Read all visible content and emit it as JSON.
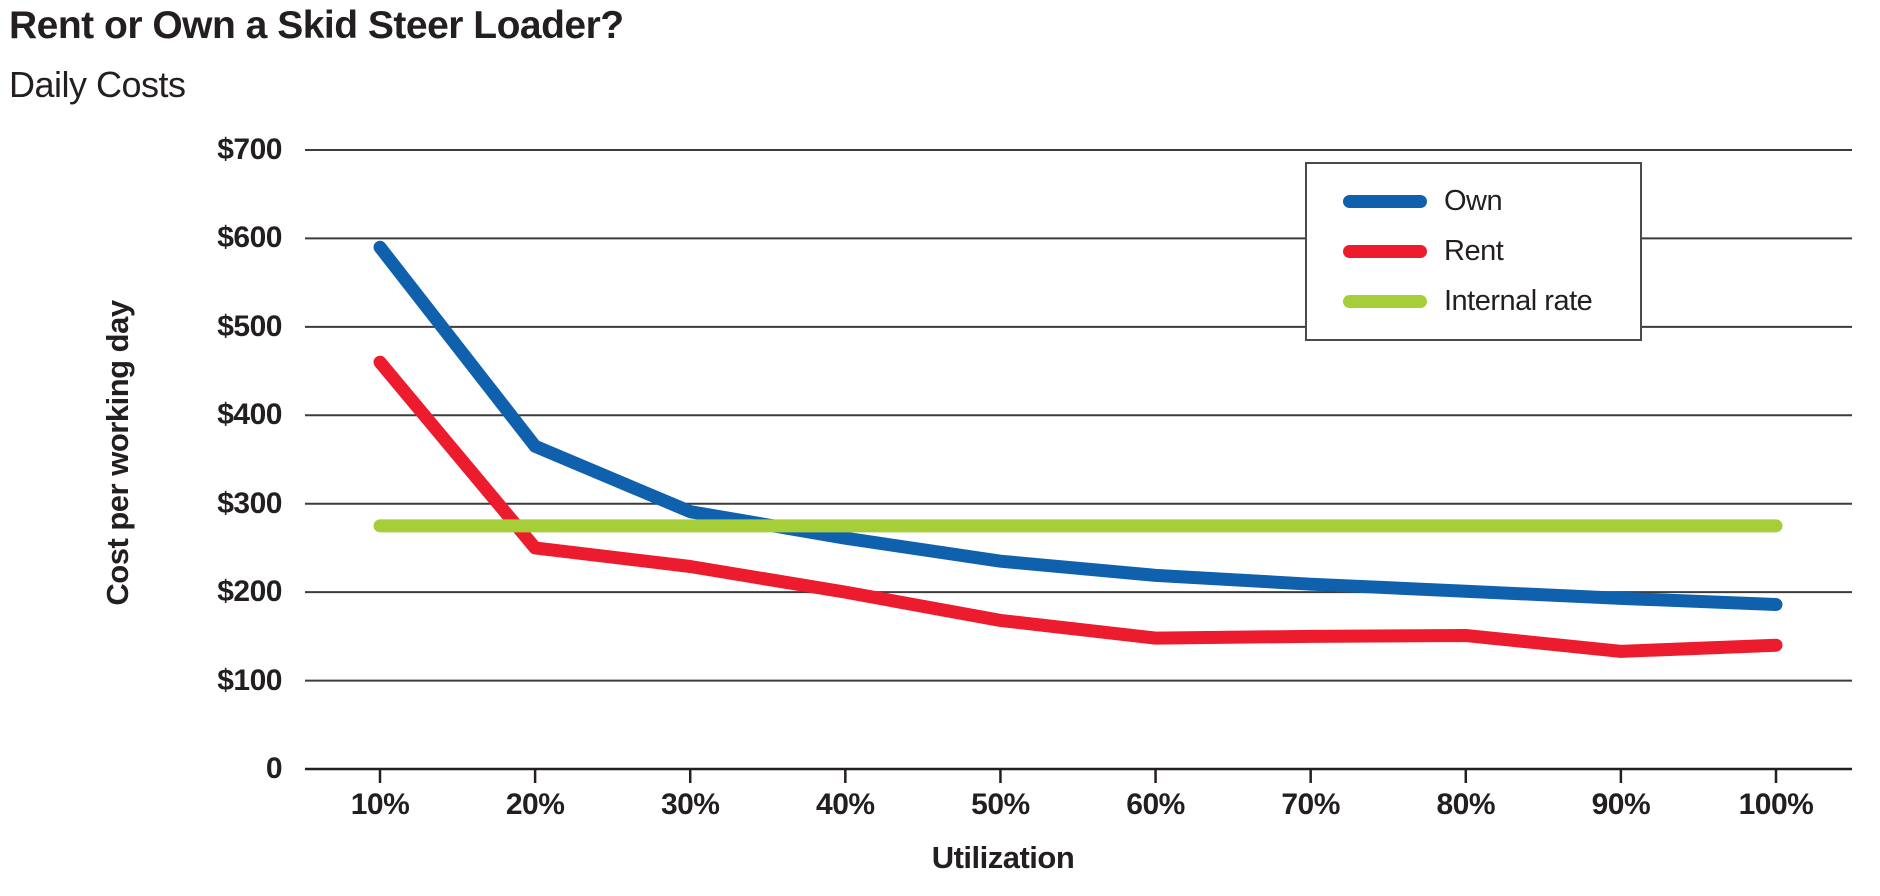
{
  "title": "Rent or Own a Skid Steer Loader?",
  "subtitle": "Daily Costs",
  "chart_data": {
    "type": "line",
    "title": "Rent or Own a Skid Steer Loader?",
    "subtitle": "Daily Costs",
    "xlabel": "Utilization",
    "ylabel": "Cost per working day",
    "categories": [
      "10%",
      "20%",
      "30%",
      "40%",
      "50%",
      "60%",
      "70%",
      "80%",
      "90%",
      "100%"
    ],
    "series": [
      {
        "name": "Own",
        "color": "#1061AD",
        "values": [
          590,
          365,
          291,
          261,
          235,
          219,
          209,
          201,
          193,
          186
        ]
      },
      {
        "name": "Rent",
        "color": "#EC1B2E",
        "values": [
          460,
          250,
          229,
          200,
          168,
          148,
          150,
          151,
          133,
          140
        ]
      },
      {
        "name": "Internal rate",
        "color": "#A6CE39",
        "values": [
          275,
          275,
          275,
          275,
          275,
          275,
          275,
          275,
          275,
          275
        ]
      }
    ],
    "ylim": [
      0,
      700
    ],
    "y_ticks": [
      {
        "label": "$700",
        "value": 700
      },
      {
        "label": "$600",
        "value": 600
      },
      {
        "label": "$500",
        "value": 500
      },
      {
        "label": "$400",
        "value": 400
      },
      {
        "label": "$300",
        "value": 300
      },
      {
        "label": "$200",
        "value": 200
      },
      {
        "label": "$100",
        "value": 100
      },
      {
        "label": "0",
        "value": 0
      }
    ],
    "grid": "horizontal",
    "legend_position": "top-right",
    "text_color": "#231F20",
    "grid_color": "#3C3C3C",
    "axis_color": "#231F20"
  }
}
